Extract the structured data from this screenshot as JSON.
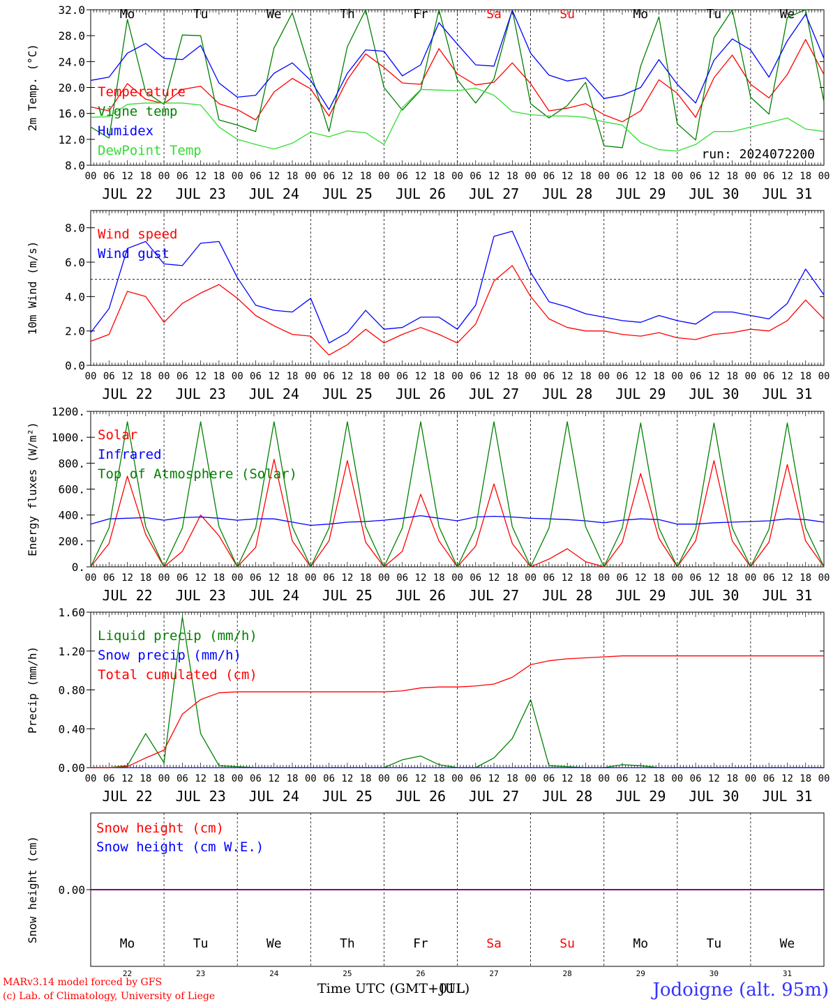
{
  "days": [
    "JUL 22",
    "JUL 23",
    "JUL 24",
    "JUL 25",
    "JUL 26",
    "JUL 27",
    "JUL 28",
    "JUL 29",
    "JUL 30",
    "JUL 31"
  ],
  "weekdays": [
    "Mo",
    "Tu",
    "We",
    "Th",
    "Fr",
    "Sa",
    "Su",
    "Mo",
    "Tu",
    "We"
  ],
  "day_numbers": [
    "22",
    "23",
    "24",
    "25",
    "26",
    "27",
    "28",
    "29",
    "30",
    "31"
  ],
  "hour_ticks": [
    "00",
    "06",
    "12",
    "18"
  ],
  "final_hour_tick": "00",
  "colors": {
    "red": "#ff0000",
    "green": "#008000",
    "blue": "#0000ff",
    "lightgreen": "#33dd33",
    "purple": "#7f007f",
    "weekend": "#ff0000"
  },
  "footer": {
    "credit_line1": "MARv3.14 model forced by GFS",
    "credit_line2": "(c) Lab. of Climatology, University of Liege",
    "xlabel": "Time UTC (GMT+01L)",
    "xlabel_overlap": "JUL",
    "station": "Jodoigne (alt. 95m)"
  },
  "chart_data": [
    {
      "type": "line",
      "ylabel": "2m Temp. (°C)",
      "yticks": [
        "8.0",
        "12.0",
        "16.0",
        "20.0",
        "24.0",
        "28.0",
        "32.0"
      ],
      "ylim": [
        8,
        32
      ],
      "run_label": "run: 2024072200",
      "x": "time, JUL 22 00 UTC to AUG 01 00 UTC, 6-hourly",
      "series": [
        {
          "name": "Temperature",
          "color": "#ff0000",
          "values": [
            17.0,
            16.4,
            20.6,
            18.2,
            17.5,
            19.7,
            20.2,
            17.5,
            16.6,
            15.0,
            19.3,
            21.4,
            19.8,
            15.6,
            21.2,
            25.2,
            23.1,
            20.7,
            20.5,
            26.0,
            22.1,
            20.4,
            20.8,
            23.8,
            20.6,
            16.4,
            16.8,
            17.5,
            15.8,
            14.7,
            16.4,
            21.2,
            19.1,
            15.4,
            21.5,
            25.0,
            20.5,
            18.4,
            22.0,
            27.4,
            22.0
          ]
        },
        {
          "name": "Vigne temp",
          "color": "#008000",
          "values": [
            13.9,
            12.2,
            30.5,
            19.3,
            17.4,
            28.1,
            28.0,
            15.0,
            14.2,
            13.2,
            26.1,
            31.5,
            22.3,
            13.2,
            26.3,
            32.0,
            20.0,
            16.5,
            19.6,
            32.0,
            21.2,
            17.6,
            21.3,
            32.0,
            17.5,
            15.3,
            17.2,
            20.8,
            11.0,
            10.7,
            23.3,
            30.9,
            14.4,
            11.9,
            27.7,
            32.0,
            18.5,
            15.9,
            30.8,
            32.0,
            17.8
          ]
        },
        {
          "name": "Humidex",
          "color": "#0000ff",
          "values": [
            21.1,
            21.6,
            25.3,
            26.8,
            24.5,
            24.3,
            26.5,
            20.7,
            18.5,
            18.8,
            22.2,
            23.8,
            21.1,
            16.6,
            22.2,
            25.8,
            25.6,
            21.8,
            23.5,
            30.0,
            26.7,
            23.5,
            23.3,
            31.9,
            25.3,
            21.9,
            21.0,
            21.5,
            18.3,
            18.8,
            20.0,
            24.3,
            20.5,
            17.6,
            24.2,
            27.5,
            25.8,
            21.6,
            27.2,
            31.3,
            24.5
          ]
        },
        {
          "name": "DewPoint Temp",
          "color": "#33dd33",
          "values": [
            15.4,
            15.5,
            17.4,
            17.6,
            17.6,
            17.6,
            17.3,
            13.9,
            12.0,
            11.2,
            10.5,
            11.4,
            13.1,
            12.4,
            13.3,
            13.0,
            11.2,
            16.9,
            19.7,
            19.6,
            19.5,
            19.9,
            18.8,
            16.3,
            15.8,
            15.6,
            15.6,
            15.4,
            14.7,
            14.2,
            11.5,
            10.4,
            10.2,
            11.2,
            13.2,
            13.2,
            13.9,
            14.6,
            15.3,
            13.6,
            13.2
          ]
        }
      ]
    },
    {
      "type": "line",
      "ylabel": "10m Wind (m/s)",
      "yticks": [
        "0.0",
        "2.0",
        "4.0",
        "6.0",
        "8.0"
      ],
      "ylim": [
        0,
        9
      ],
      "reference_line": 5.0,
      "series": [
        {
          "name": "Wind speed",
          "color": "#ff0000",
          "values": [
            1.4,
            1.8,
            4.3,
            4.0,
            2.5,
            3.6,
            4.2,
            4.7,
            3.9,
            2.9,
            2.3,
            1.8,
            1.7,
            0.6,
            1.2,
            2.1,
            1.3,
            1.8,
            2.2,
            1.8,
            1.3,
            2.4,
            4.9,
            5.8,
            4.0,
            2.7,
            2.2,
            2.0,
            2.0,
            1.8,
            1.7,
            1.9,
            1.6,
            1.5,
            1.8,
            1.9,
            2.1,
            2.0,
            2.6,
            3.8,
            2.7
          ]
        },
        {
          "name": "Wind gust",
          "color": "#0000ff",
          "values": [
            1.9,
            3.3,
            6.8,
            7.2,
            5.9,
            5.8,
            7.1,
            7.2,
            5.1,
            3.5,
            3.2,
            3.1,
            3.9,
            1.3,
            1.9,
            3.2,
            2.1,
            2.2,
            2.8,
            2.8,
            2.1,
            3.5,
            7.5,
            7.8,
            5.4,
            3.7,
            3.4,
            3.0,
            2.8,
            2.6,
            2.5,
            2.9,
            2.6,
            2.4,
            3.1,
            3.1,
            2.9,
            2.7,
            3.6,
            5.6,
            4.1
          ]
        }
      ]
    },
    {
      "type": "line",
      "ylabel": "Energy fluxes (W/m²)",
      "yticks": [
        "0.",
        "200.",
        "400.",
        "600.",
        "800.",
        "1000.",
        "1200."
      ],
      "ylim": [
        0,
        1200
      ],
      "series": [
        {
          "name": "Solar",
          "color": "#ff0000",
          "values": [
            0,
            180,
            700,
            250,
            0,
            120,
            400,
            240,
            0,
            150,
            830,
            200,
            0,
            200,
            820,
            190,
            0,
            120,
            560,
            200,
            0,
            160,
            640,
            180,
            0,
            60,
            140,
            40,
            0,
            190,
            720,
            220,
            0,
            200,
            820,
            200,
            0,
            190,
            790,
            200,
            0
          ]
        },
        {
          "name": "Infrared",
          "color": "#0000ff",
          "values": [
            330,
            370,
            375,
            380,
            360,
            380,
            385,
            375,
            360,
            370,
            370,
            345,
            320,
            330,
            345,
            350,
            360,
            375,
            395,
            375,
            355,
            385,
            390,
            385,
            375,
            370,
            365,
            355,
            340,
            360,
            370,
            365,
            330,
            330,
            340,
            345,
            350,
            355,
            370,
            365,
            345
          ]
        },
        {
          "name": "Top of Atmosphere (Solar)",
          "color": "#008000",
          "values": [
            0,
            300,
            1120,
            310,
            0,
            300,
            1120,
            310,
            0,
            300,
            1120,
            310,
            0,
            300,
            1120,
            310,
            0,
            300,
            1120,
            310,
            0,
            300,
            1120,
            310,
            0,
            300,
            1120,
            310,
            0,
            300,
            1110,
            300,
            0,
            290,
            1110,
            300,
            0,
            290,
            1110,
            300,
            0
          ]
        }
      ]
    },
    {
      "type": "line",
      "ylabel": "Precip (mm/h)",
      "yticks": [
        "0.00",
        "0.40",
        "0.80",
        "1.20",
        "1.60"
      ],
      "ylim": [
        0,
        1.6
      ],
      "series": [
        {
          "name": "Liquid precip (mm/h)",
          "color": "#008000",
          "values": [
            0,
            0,
            0.02,
            0.35,
            0.05,
            1.55,
            0.35,
            0.02,
            0.01,
            0,
            0,
            0,
            0,
            0,
            0,
            0,
            0,
            0.08,
            0.12,
            0.03,
            0,
            0,
            0.1,
            0.3,
            0.7,
            0.02,
            0.01,
            0,
            0,
            0.03,
            0.02,
            0,
            0,
            0,
            0,
            0,
            0,
            0,
            0,
            0,
            0
          ]
        },
        {
          "name": "Snow precip (mm/h)",
          "color": "#0000ff",
          "values": [
            0,
            0,
            0,
            0,
            0,
            0,
            0,
            0,
            0,
            0,
            0,
            0,
            0,
            0,
            0,
            0,
            0,
            0,
            0,
            0,
            0,
            0,
            0,
            0,
            0,
            0,
            0,
            0,
            0,
            0,
            0,
            0,
            0,
            0,
            0,
            0,
            0,
            0,
            0,
            0,
            0
          ]
        },
        {
          "name": "Total cumulated (cm)",
          "color": "#ff0000",
          "values": [
            0,
            0,
            0.01,
            0.1,
            0.18,
            0.55,
            0.7,
            0.77,
            0.78,
            0.78,
            0.78,
            0.78,
            0.78,
            0.78,
            0.78,
            0.78,
            0.78,
            0.79,
            0.82,
            0.83,
            0.83,
            0.84,
            0.86,
            0.93,
            1.06,
            1.1,
            1.12,
            1.13,
            1.14,
            1.15,
            1.15,
            1.15,
            1.15,
            1.15,
            1.15,
            1.15,
            1.15,
            1.15,
            1.15,
            1.15,
            1.15
          ]
        }
      ]
    },
    {
      "type": "line",
      "ylabel": "Snow height (cm)",
      "yticks": [
        "0.00"
      ],
      "ylim": [
        -1,
        1
      ],
      "series": [
        {
          "name": "Snow height (cm)",
          "color": "#ff0000",
          "values": [
            0,
            0,
            0,
            0,
            0,
            0,
            0,
            0,
            0,
            0,
            0,
            0,
            0,
            0,
            0,
            0,
            0,
            0,
            0,
            0,
            0,
            0,
            0,
            0,
            0,
            0,
            0,
            0,
            0,
            0,
            0,
            0,
            0,
            0,
            0,
            0,
            0,
            0,
            0,
            0,
            0
          ]
        },
        {
          "name": "Snow height (cm W.E.)",
          "color": "#0000ff",
          "values": [
            0,
            0,
            0,
            0,
            0,
            0,
            0,
            0,
            0,
            0,
            0,
            0,
            0,
            0,
            0,
            0,
            0,
            0,
            0,
            0,
            0,
            0,
            0,
            0,
            0,
            0,
            0,
            0,
            0,
            0,
            0,
            0,
            0,
            0,
            0,
            0,
            0,
            0,
            0,
            0,
            0
          ]
        }
      ]
    }
  ]
}
